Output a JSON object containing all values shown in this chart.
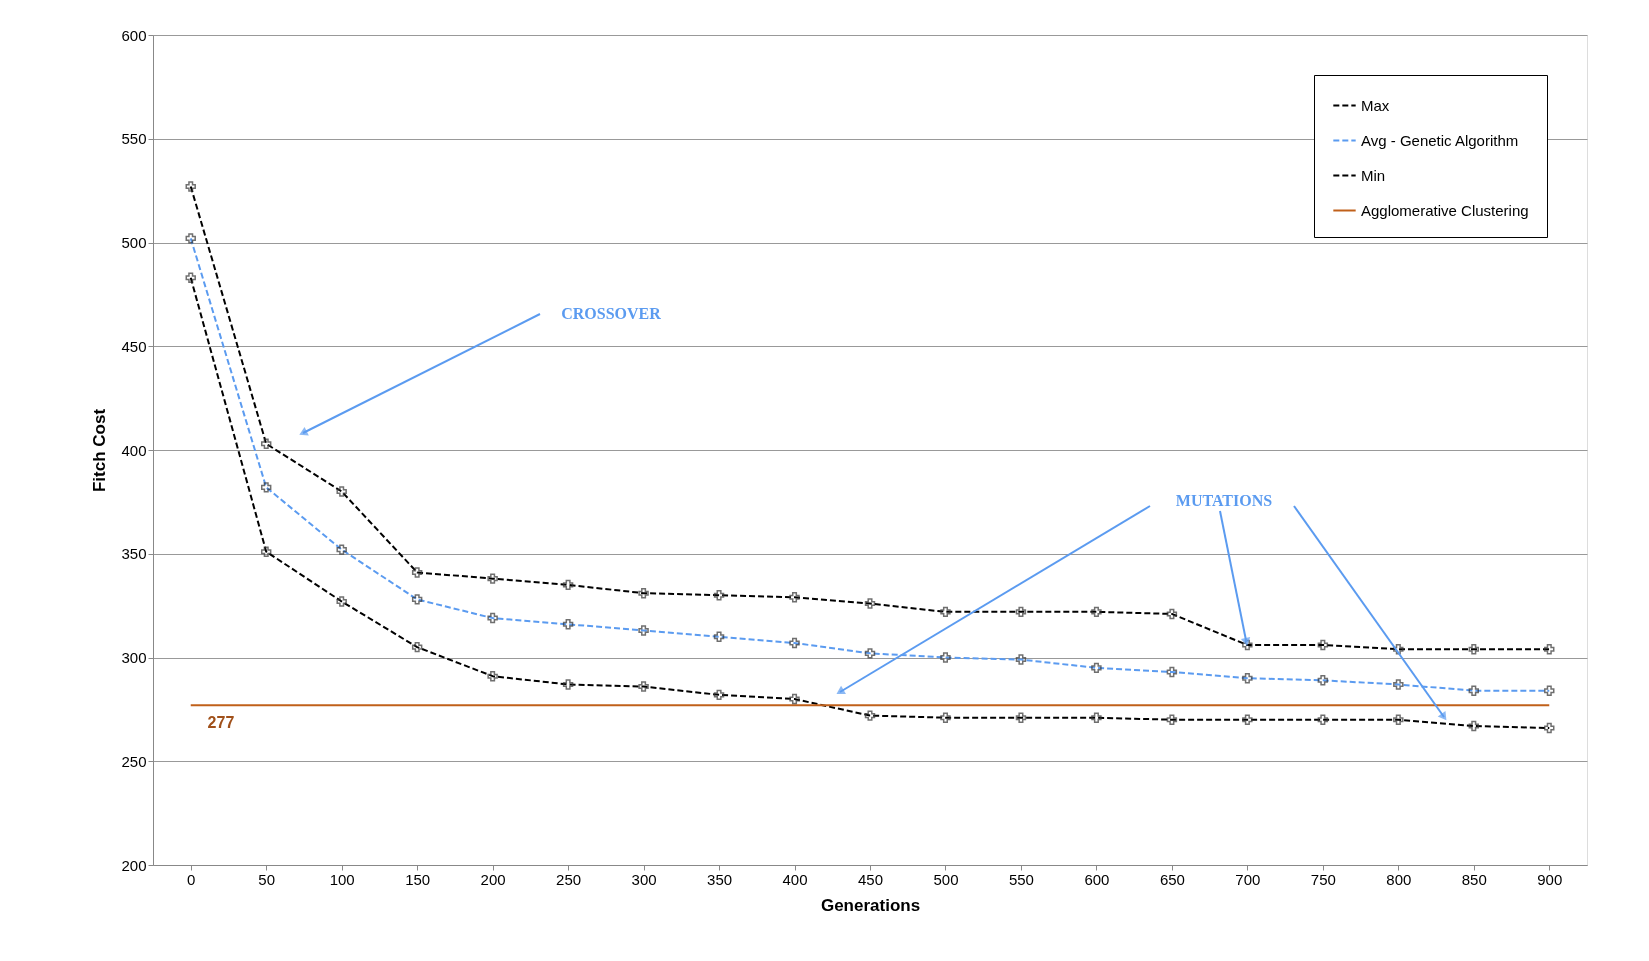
{
  "chart_data": {
    "type": "line",
    "xlabel": "Generations",
    "ylabel": "Fitch Cost",
    "categories": [
      "0",
      "50",
      "100",
      "150",
      "200",
      "250",
      "300",
      "350",
      "400",
      "450",
      "500",
      "550",
      "600",
      "650",
      "700",
      "750",
      "800",
      "850",
      "900"
    ],
    "series": [
      {
        "name": "Max",
        "color": "#000000",
        "line_style": "dashed",
        "marker": "cross",
        "values": [
          527,
          403,
          380,
          341,
          338,
          335,
          331,
          330,
          329,
          326,
          322,
          322,
          322,
          321,
          306,
          306,
          304,
          304,
          304
        ]
      },
      {
        "name": "Avg - Genetic Algorithm",
        "color": "#5b9bf0",
        "line_style": "dashed",
        "marker": "cross",
        "values": [
          502,
          382,
          352,
          328,
          319,
          316,
          313,
          310,
          307,
          302,
          300,
          299,
          295,
          293,
          290,
          289,
          287,
          284,
          284
        ]
      },
      {
        "name": "Min",
        "color": "#000000",
        "line_style": "dashed",
        "marker": "cross",
        "values": [
          483,
          351,
          327,
          305,
          291,
          287,
          286,
          282,
          280,
          272,
          271,
          271,
          271,
          270,
          270,
          270,
          270,
          267,
          266
        ]
      },
      {
        "name": "Agglomerative Clustering",
        "color": "#c0601a",
        "line_style": "solid",
        "marker": "none",
        "values": [
          277,
          277,
          277,
          277,
          277,
          277,
          277,
          277,
          277,
          277,
          277,
          277,
          277,
          277,
          277,
          277,
          277,
          277,
          277
        ]
      }
    ],
    "ylim": [
      200,
      600
    ],
    "yticks": [
      200,
      250,
      300,
      350,
      400,
      450,
      500,
      550,
      600
    ],
    "grid": "y",
    "legend": "top right",
    "annotations": [
      "CROSSOVER",
      {
        "text": "MUTATIONS",
        "x": "700",
        "y": 306
      },
      {
        "text": "277",
        "y": 277
      }
    ]
  }
}
